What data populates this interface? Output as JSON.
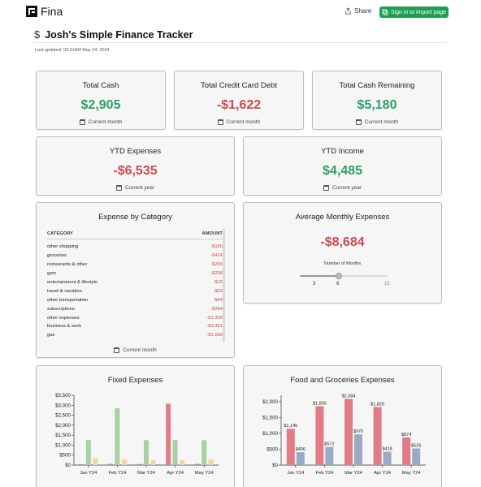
{
  "app": {
    "brand": "Fina",
    "share_label": "Share",
    "signin_label": "Sign in to import page"
  },
  "page": {
    "title": "Josh's Simple Finance Tracker",
    "last_updated": "Last updated: 09:21AM May 24, 2024"
  },
  "colors": {
    "positive": "#2e9e66",
    "negative": "#cc4b4b",
    "signin": "#1f9d55",
    "red_bar": "#e17b85",
    "green_bar": "#a8d0a2",
    "peach_bar": "#f4d3a6",
    "blue_bar": "#9aaac4"
  },
  "summary": {
    "total_cash": {
      "title": "Total Cash",
      "value": "$2,905",
      "period": "Current month"
    },
    "credit_debt": {
      "title": "Total Credit Card Debt",
      "value": "-$1,622",
      "period": "Current month"
    },
    "cash_remaining": {
      "title": "Total Cash Remaining",
      "value": "$5,180",
      "period": "Current month"
    },
    "ytd_expenses": {
      "title": "YTD Expenses",
      "value": "-$6,535",
      "period": "Current year"
    },
    "ytd_income": {
      "title": "YTD Income",
      "value": "$4,485",
      "period": "Current year"
    }
  },
  "expense_by_category": {
    "title": "Expense by Category",
    "col_category": "CATEGORY",
    "col_amount": "AMOUNT",
    "rows": [
      {
        "name": "other shopping",
        "amount": "-$180"
      },
      {
        "name": "groceries",
        "amount": "-$424"
      },
      {
        "name": "restaurants & other",
        "amount": "-$255"
      },
      {
        "name": "gym",
        "amount": "-$258"
      },
      {
        "name": "entertainment & lifestyle",
        "amount": "-$15"
      },
      {
        "name": "travel & vacation",
        "amount": "-$59"
      },
      {
        "name": "other transportation",
        "amount": "-$44"
      },
      {
        "name": "subscriptions",
        "amount": "-$284"
      },
      {
        "name": "other expenses",
        "amount": "-$1,399"
      },
      {
        "name": "business & work",
        "amount": "-$3,491"
      },
      {
        "name": "gas",
        "amount": "-$1,099"
      }
    ],
    "period": "Current month"
  },
  "avg_monthly": {
    "title": "Average Monthly Expenses",
    "value": "-$8,684",
    "slider_label": "Number of Months",
    "slider_min": 3,
    "slider_value": 6,
    "slider_max": 12,
    "tick_min": "3",
    "tick_value": "6",
    "tick_max": "12"
  },
  "chart_data": [
    {
      "title": "Fixed Expenses",
      "type": "bar",
      "categories": [
        "Jan Y24",
        "Feb Y24",
        "Mar Y24",
        "Apr Y24",
        "May Y24"
      ],
      "ylim": [
        0,
        3500
      ],
      "yticks": [
        0,
        500,
        1000,
        1500,
        2000,
        2500,
        3000,
        3500
      ],
      "ytick_labels": [
        "$0",
        "$500",
        "$1,000",
        "$1,500",
        "$2,000",
        "$2,500",
        "$3,000",
        "$3,500"
      ],
      "series": [
        {
          "color": "#e17b85",
          "values": [
            40,
            60,
            50,
            3080,
            60
          ]
        },
        {
          "color": "#a8d0a2",
          "values": [
            1250,
            2850,
            1250,
            1250,
            1250
          ]
        },
        {
          "color": "#f4d3a6",
          "values": [
            350,
            280,
            250,
            250,
            280
          ]
        }
      ]
    },
    {
      "title": "Food and Groceries Expenses",
      "type": "bar",
      "categories": [
        "Jan Y24",
        "Feb Y24",
        "Mar Y24",
        "Apr Y24",
        "May Y24"
      ],
      "ylim": [
        0,
        2200
      ],
      "yticks": [
        0,
        500,
        1000,
        1500,
        2000
      ],
      "ytick_labels": [
        "$0",
        "$500",
        "$1,000",
        "$1,500",
        "$2,000"
      ],
      "series": [
        {
          "color": "#e17b85",
          "values": [
            1145,
            1855,
            2084,
            1829,
            874
          ],
          "labels": [
            "$1,145",
            "$1,855",
            "$2,084",
            "$1,829",
            "$874"
          ]
        },
        {
          "color": "#9aaac4",
          "values": [
            406,
            572,
            970,
            418,
            526
          ],
          "labels": [
            "$406",
            "$572",
            "$970",
            "$418",
            "$526"
          ]
        }
      ]
    }
  ]
}
